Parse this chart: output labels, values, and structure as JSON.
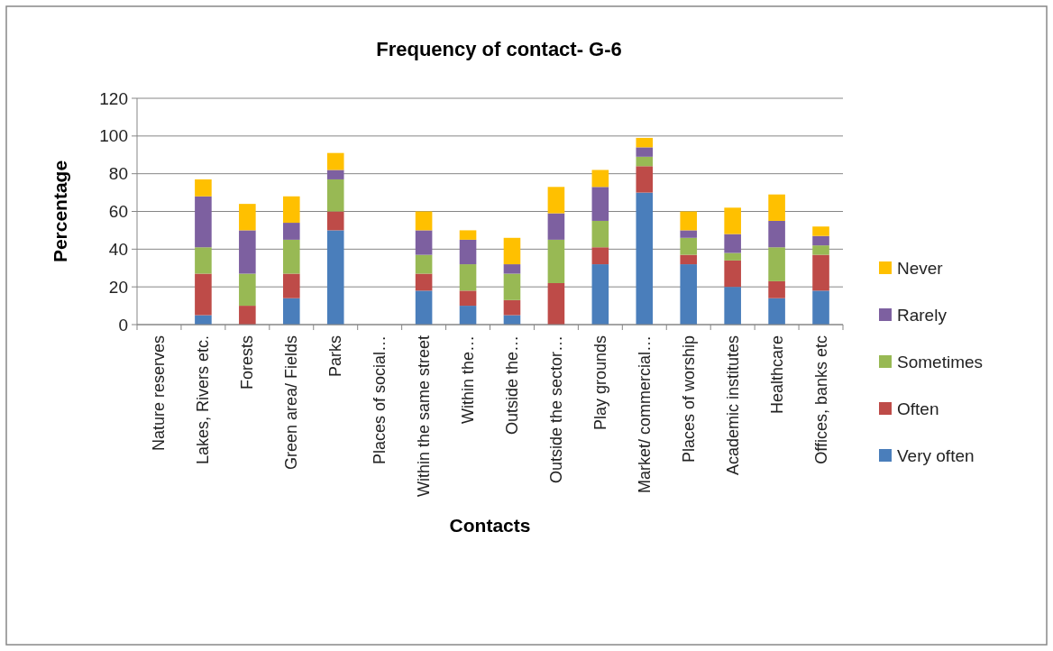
{
  "chart_data": {
    "type": "bar",
    "stacked": true,
    "title": "Frequency of contact- G-6",
    "xlabel": "Contacts",
    "ylabel": "Percentage",
    "categories": [
      "Nature reserves",
      "Lakes, Rivers etc.",
      "Forests",
      "Green area/ Fields",
      "Parks",
      "Places of social…",
      "Within the same street",
      "Within the…",
      "Outside the…",
      "Outside the sector…",
      "Play grounds",
      "Market/ commercial…",
      "Places of worship",
      "Academic institutes",
      "Healthcare",
      "Offices, banks etc"
    ],
    "series": [
      {
        "name": "Very often",
        "color": "#4a7ebb",
        "values": [
          0,
          5,
          0,
          14,
          50,
          0,
          18,
          10,
          5,
          0,
          32,
          70,
          32,
          20,
          14,
          18
        ]
      },
      {
        "name": "Often",
        "color": "#be4b48",
        "values": [
          0,
          22,
          10,
          13,
          10,
          0,
          9,
          8,
          8,
          22,
          9,
          14,
          5,
          14,
          9,
          19
        ]
      },
      {
        "name": "Sometimes",
        "color": "#98b954",
        "values": [
          0,
          14,
          17,
          18,
          17,
          0,
          10,
          14,
          14,
          23,
          14,
          5,
          9,
          4,
          18,
          5
        ]
      },
      {
        "name": "Rarely",
        "color": "#7d60a0",
        "values": [
          0,
          27,
          23,
          9,
          5,
          0,
          13,
          13,
          5,
          14,
          18,
          5,
          4,
          10,
          14,
          5
        ]
      },
      {
        "name": "Never",
        "color": "#ffc000",
        "values": [
          0,
          9,
          14,
          14,
          9,
          0,
          10,
          5,
          14,
          14,
          9,
          5,
          10,
          14,
          14,
          5
        ]
      }
    ],
    "ylim": [
      0,
      120
    ],
    "yticks": [
      0,
      20,
      40,
      60,
      80,
      100,
      120
    ],
    "grid": "y",
    "legend": "right"
  }
}
